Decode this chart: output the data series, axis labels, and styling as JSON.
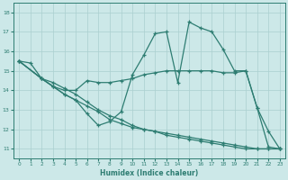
{
  "xlabel": "Humidex (Indice chaleur)",
  "xlim": [
    -0.5,
    23.5
  ],
  "ylim": [
    10.5,
    18.5
  ],
  "xticks": [
    0,
    1,
    2,
    3,
    4,
    5,
    6,
    7,
    8,
    9,
    10,
    11,
    12,
    13,
    14,
    15,
    16,
    17,
    18,
    19,
    20,
    21,
    22,
    23
  ],
  "yticks": [
    11,
    12,
    13,
    14,
    15,
    16,
    17,
    18
  ],
  "bg_color": "#cce8e8",
  "line_color": "#2e7d72",
  "grid_color": "#aacfcf",
  "series1_x": [
    0,
    1,
    2,
    3,
    4,
    5,
    6,
    7,
    8,
    9,
    10,
    11,
    12,
    13,
    14,
    15,
    16,
    17,
    18,
    19,
    20,
    21,
    22,
    23
  ],
  "series1_y": [
    15.5,
    15.4,
    14.6,
    14.2,
    13.8,
    13.5,
    12.8,
    12.2,
    12.4,
    12.9,
    14.8,
    15.8,
    16.9,
    17.0,
    14.4,
    17.5,
    17.2,
    17.0,
    16.1,
    15.0,
    15.0,
    13.1,
    11.9,
    11.0
  ],
  "series2_x": [
    0,
    2,
    3,
    4,
    5,
    6,
    7,
    8,
    9,
    10,
    11,
    12,
    13,
    14,
    15,
    16,
    17,
    18,
    19,
    20,
    21,
    22,
    23
  ],
  "series2_y": [
    15.5,
    14.6,
    14.2,
    14.0,
    14.0,
    14.5,
    14.4,
    14.4,
    14.5,
    14.6,
    14.8,
    14.9,
    15.0,
    15.0,
    15.0,
    15.0,
    15.0,
    14.9,
    14.9,
    15.0,
    13.1,
    11.1,
    11.0
  ],
  "series3_x": [
    0,
    2,
    3,
    4,
    5,
    6,
    7,
    8,
    9,
    10,
    11,
    12,
    13,
    14,
    15,
    16,
    17,
    18,
    19,
    20,
    21,
    22,
    23
  ],
  "series3_y": [
    15.5,
    14.6,
    14.2,
    13.8,
    13.5,
    13.2,
    12.9,
    12.5,
    12.3,
    12.1,
    12.0,
    11.9,
    11.8,
    11.7,
    11.6,
    11.5,
    11.4,
    11.3,
    11.2,
    11.1,
    11.0,
    11.0,
    11.0
  ],
  "series4_x": [
    0,
    2,
    3,
    4,
    5,
    6,
    7,
    8,
    9,
    10,
    11,
    12,
    13,
    14,
    15,
    16,
    17,
    18,
    19,
    20,
    21,
    22,
    23
  ],
  "series4_y": [
    15.5,
    14.6,
    14.4,
    14.1,
    13.8,
    13.4,
    13.0,
    12.7,
    12.5,
    12.2,
    12.0,
    11.9,
    11.7,
    11.6,
    11.5,
    11.4,
    11.3,
    11.2,
    11.1,
    11.0,
    11.0,
    11.0,
    11.0
  ]
}
